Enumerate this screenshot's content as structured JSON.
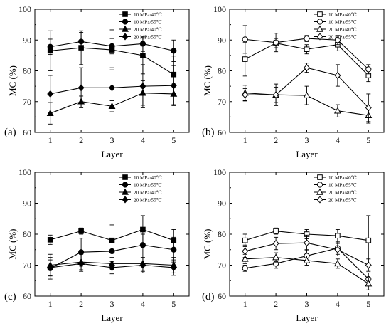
{
  "chart_data": [
    {
      "type": "line",
      "panel_label": "(a)",
      "xlabel": "Layer",
      "ylabel": "MC (%)",
      "x": [
        1,
        2,
        3,
        4,
        5
      ],
      "xticks": [
        "1",
        "2",
        "3",
        "4",
        "5"
      ],
      "ylim": [
        60,
        100
      ],
      "yticks": [
        "60",
        "70",
        "80",
        "90",
        "100"
      ],
      "legend_position": "top-right",
      "series": [
        {
          "name": "10 MPa/40℃",
          "marker": "square",
          "filled": true,
          "values": [
            86.5,
            87.5,
            86.8,
            85.0,
            78.8
          ],
          "errors": [
            6.5,
            5.5,
            6.5,
            6.0,
            6.0
          ]
        },
        {
          "name": "10 MPa/55℃",
          "marker": "circle",
          "filled": true,
          "values": [
            87.8,
            89.5,
            88.0,
            88.8,
            86.5
          ],
          "errors": [
            2.5,
            3.0,
            2.5,
            2.5,
            3.5
          ]
        },
        {
          "name": "20 MPa/40℃",
          "marker": "triangle",
          "filled": true,
          "values": [
            66.2,
            70.0,
            68.5,
            72.8,
            72.5
          ],
          "errors": [
            3.5,
            1.8,
            1.8,
            4.0,
            3.5
          ]
        },
        {
          "name": "20 MPa/55℃",
          "marker": "diamond",
          "filled": true,
          "values": [
            72.5,
            74.5,
            74.5,
            75.0,
            75.2
          ],
          "errors": [
            6.0,
            6.5,
            6.5,
            7.0,
            6.5
          ]
        }
      ]
    },
    {
      "type": "line",
      "panel_label": "(b)",
      "xlabel": "Layer",
      "ylabel": "MC (%)",
      "x": [
        1,
        2,
        3,
        4,
        5
      ],
      "xticks": [
        "1",
        "2",
        "3",
        "4",
        "5"
      ],
      "ylim": [
        60,
        100
      ],
      "yticks": [
        "60",
        "70",
        "80",
        "90",
        "100"
      ],
      "legend_position": "top-right",
      "series": [
        {
          "name": "10 MPa/40℃",
          "marker": "square",
          "filled": false,
          "values": [
            83.8,
            89.0,
            87.0,
            88.5,
            78.5
          ],
          "errors": [
            5.5,
            1.5,
            1.5,
            2.0,
            2.0
          ]
        },
        {
          "name": "10 MPa/55℃",
          "marker": "circle",
          "filled": false,
          "values": [
            90.2,
            89.2,
            90.5,
            90.0,
            80.5
          ],
          "errors": [
            4.5,
            3.0,
            1.0,
            1.5,
            1.5
          ]
        },
        {
          "name": "20 MPa/40℃",
          "marker": "triangle",
          "filled": false,
          "values": [
            72.8,
            72.2,
            72.0,
            67.0,
            65.5
          ],
          "errors": [
            2.5,
            2.5,
            3.0,
            2.0,
            2.5
          ]
        },
        {
          "name": "20 MPa/55℃",
          "marker": "diamond",
          "filled": false,
          "values": [
            72.2,
            72.2,
            81.0,
            78.5,
            68.0
          ],
          "errors": [
            2.0,
            3.5,
            1.5,
            3.5,
            4.5
          ]
        }
      ]
    },
    {
      "type": "line",
      "panel_label": "(c)",
      "xlabel": "Layer",
      "ylabel": "MC (%)",
      "x": [
        1,
        2,
        3,
        4,
        5
      ],
      "xticks": [
        "1",
        "2",
        "3",
        "4",
        "5"
      ],
      "ylim": [
        60,
        100
      ],
      "yticks": [
        "60",
        "70",
        "80",
        "90",
        "100"
      ],
      "legend_position": "top-right",
      "series": [
        {
          "name": "10 MPa/40℃",
          "marker": "square",
          "filled": true,
          "values": [
            78.2,
            81.0,
            78.0,
            81.5,
            78.0
          ],
          "errors": [
            1.5,
            1.0,
            5.0,
            4.5,
            3.5
          ]
        },
        {
          "name": "10 MPa/55℃",
          "marker": "circle",
          "filled": true,
          "values": [
            69.0,
            74.2,
            74.5,
            76.5,
            75.0
          ],
          "errors": [
            3.5,
            4.5,
            4.0,
            3.5,
            4.0
          ]
        },
        {
          "name": "20 MPa/40℃",
          "marker": "triangle",
          "filled": true,
          "values": [
            70.0,
            71.0,
            70.5,
            70.5,
            70.0
          ],
          "errors": [
            3.5,
            2.5,
            2.0,
            2.5,
            2.5
          ]
        },
        {
          "name": "20 MPa/55℃",
          "marker": "diamond",
          "filled": true,
          "values": [
            69.2,
            70.5,
            69.2,
            70.0,
            69.2
          ],
          "errors": [
            2.5,
            2.5,
            2.0,
            2.5,
            2.5
          ]
        }
      ]
    },
    {
      "type": "line",
      "panel_label": "(d)",
      "xlabel": "Layer",
      "ylabel": "MC (%)",
      "x": [
        1,
        2,
        3,
        4,
        5
      ],
      "xticks": [
        "1",
        "2",
        "3",
        "4",
        "5"
      ],
      "ylim": [
        60,
        100
      ],
      "yticks": [
        "60",
        "70",
        "80",
        "90",
        "100"
      ],
      "legend_position": "top-right",
      "series": [
        {
          "name": "10 MPa/40℃",
          "marker": "square",
          "filled": false,
          "values": [
            78.0,
            81.0,
            80.0,
            79.5,
            78.0
          ],
          "errors": [
            2.0,
            1.0,
            1.5,
            2.0,
            8.0
          ]
        },
        {
          "name": "10 MPa/55℃",
          "marker": "circle",
          "filled": false,
          "values": [
            69.0,
            70.5,
            73.0,
            75.5,
            65.5
          ],
          "errors": [
            1.0,
            1.5,
            2.0,
            2.0,
            2.0
          ]
        },
        {
          "name": "20 MPa/40℃",
          "marker": "triangle",
          "filled": false,
          "values": [
            72.0,
            72.5,
            71.5,
            70.5,
            64.0
          ],
          "errors": [
            1.5,
            1.5,
            1.5,
            1.5,
            2.0
          ]
        },
        {
          "name": "20 MPa/55℃",
          "marker": "diamond",
          "filled": false,
          "values": [
            74.5,
            77.0,
            77.2,
            75.0,
            70.0
          ],
          "errors": [
            2.0,
            2.0,
            2.5,
            2.0,
            2.0
          ]
        }
      ]
    }
  ]
}
